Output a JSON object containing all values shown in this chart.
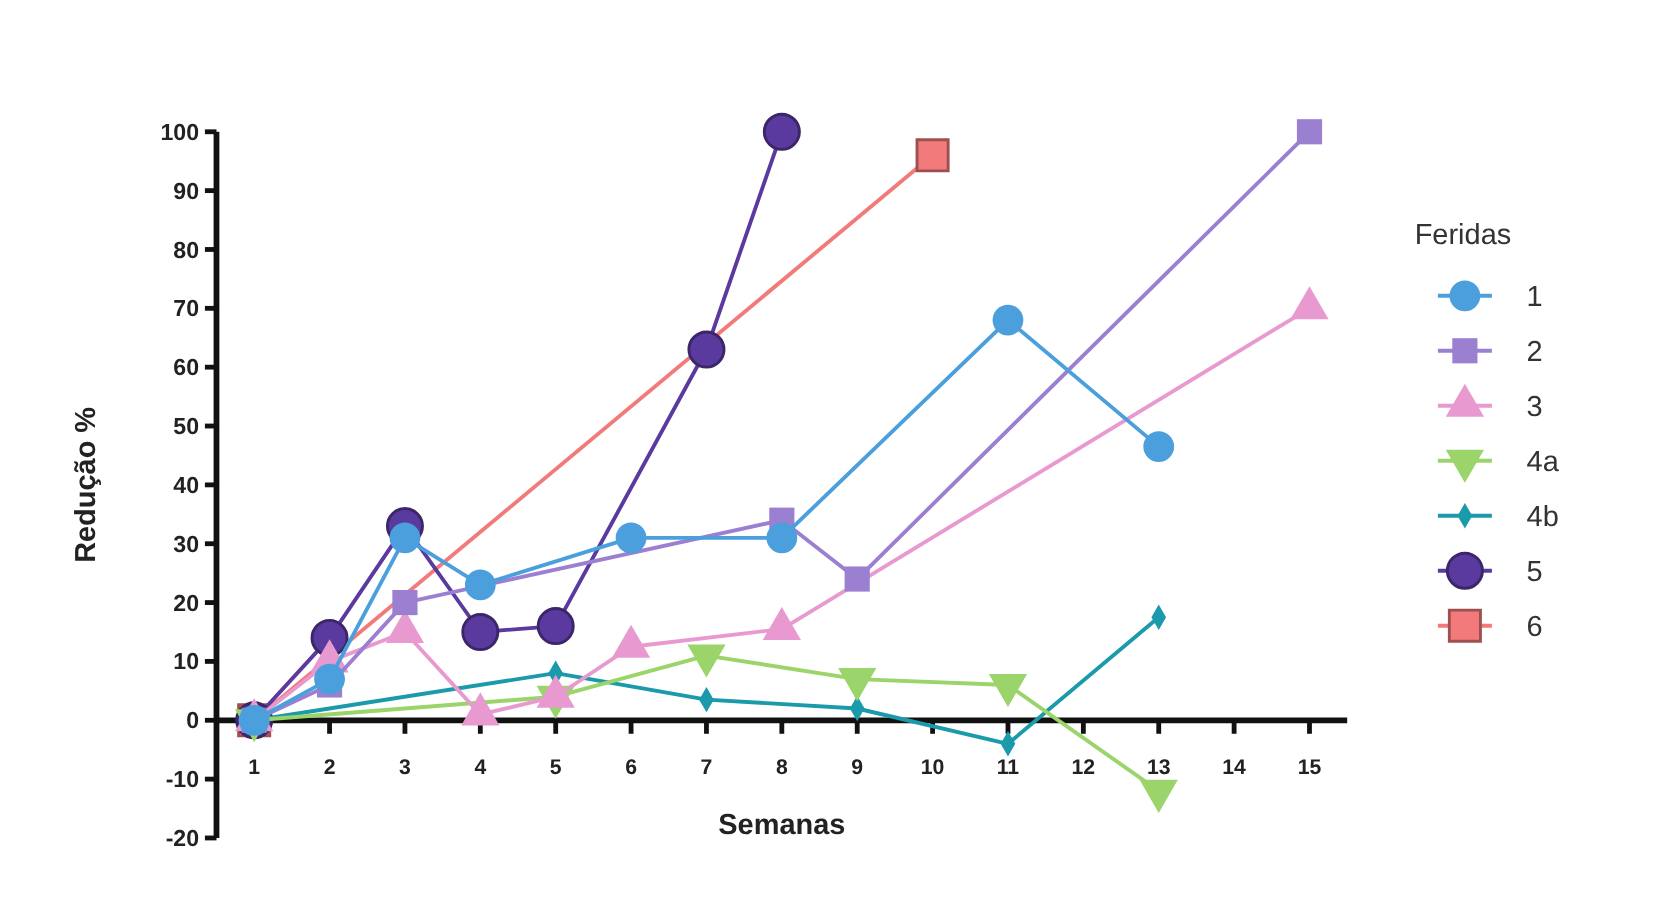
{
  "chart_data": {
    "type": "line",
    "xlabel": "Semanas",
    "ylabel": "Redução %",
    "legend_title": "Feridas",
    "legend": "right",
    "grid": false,
    "line_style": "solid",
    "xlim": [
      0.5,
      15.5
    ],
    "xticks": [
      1,
      2,
      3,
      4,
      5,
      6,
      7,
      8,
      9,
      10,
      11,
      12,
      13,
      14,
      15
    ],
    "ylim": [
      -20,
      100
    ],
    "yticks": [
      -20,
      -10,
      0,
      10,
      20,
      30,
      40,
      50,
      60,
      70,
      80,
      90,
      100
    ],
    "series": [
      {
        "name": "1",
        "color": "#4a9fdc",
        "marker": "circle",
        "x": [
          1,
          2,
          3,
          4,
          6,
          8,
          11,
          13
        ],
        "values": [
          0,
          7,
          31,
          23,
          31,
          31,
          68,
          46.5
        ]
      },
      {
        "name": "2",
        "color": "#9b7fd0",
        "marker": "square",
        "x": [
          1,
          2,
          3,
          8,
          9,
          15
        ],
        "values": [
          0,
          6,
          20,
          34,
          24,
          100
        ]
      },
      {
        "name": "3",
        "color": "#e89ad0",
        "marker": "triangle",
        "x": [
          1,
          2,
          3,
          4,
          5,
          6,
          8,
          15
        ],
        "values": [
          0,
          10,
          15,
          1,
          4,
          12.5,
          15.5,
          70
        ]
      },
      {
        "name": "4a",
        "color": "#9ad46a",
        "marker": "triangle-down",
        "x": [
          1,
          5,
          7,
          9,
          11,
          13
        ],
        "values": [
          0,
          4,
          11,
          7,
          6,
          -12
        ]
      },
      {
        "name": "4b",
        "color": "#1a9aaa",
        "marker": "diamond",
        "x": [
          1,
          5,
          7,
          9,
          11,
          13
        ],
        "values": [
          0,
          8,
          3.5,
          2,
          -4,
          17.5
        ]
      },
      {
        "name": "5",
        "color": "#5a3a9e",
        "marker": "circle",
        "x": [
          1,
          2,
          3,
          4,
          5,
          7,
          8
        ],
        "values": [
          0,
          14,
          33,
          15,
          16,
          63,
          100
        ]
      },
      {
        "name": "6",
        "color": "#f27a7a",
        "marker": "square",
        "x": [
          1,
          10
        ],
        "values": [
          0,
          96
        ]
      }
    ]
  }
}
